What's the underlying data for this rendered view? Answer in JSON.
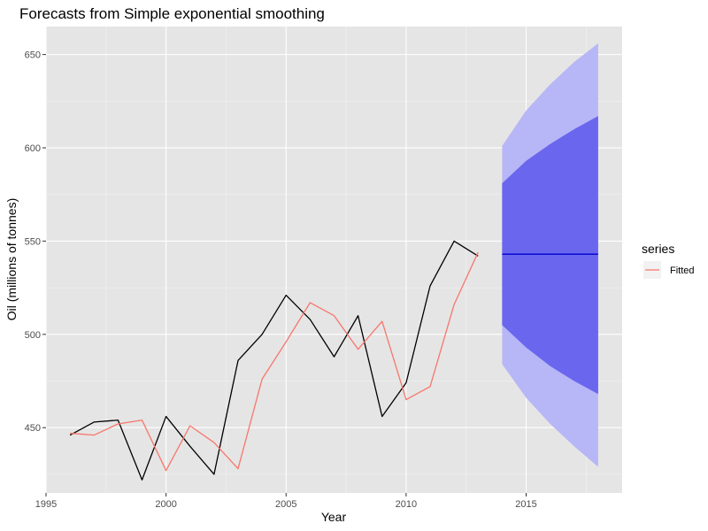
{
  "chart_data": {
    "type": "line",
    "title": "Forecasts from Simple exponential smoothing",
    "xlabel": "Year",
    "ylabel": "Oil (millions of tonnes)",
    "xlim": [
      1995,
      2019
    ],
    "ylim": [
      415,
      665
    ],
    "x_ticks": [
      1995,
      2000,
      2005,
      2010,
      2015
    ],
    "y_ticks": [
      450,
      500,
      550,
      600,
      650
    ],
    "grid": true,
    "legend": {
      "title": "series",
      "position": "right",
      "entries": [
        {
          "label": "Fitted",
          "color": "#f8766d"
        }
      ]
    },
    "series": [
      {
        "key": "observed",
        "color": "#000000",
        "x": [
          1996,
          1997,
          1998,
          1999,
          2000,
          2001,
          2002,
          2003,
          2004,
          2005,
          2006,
          2007,
          2008,
          2009,
          2010,
          2011,
          2012,
          2013
        ],
        "values": [
          446,
          453,
          454,
          422,
          456,
          440,
          425,
          486,
          500,
          521,
          508,
          488,
          510,
          456,
          474,
          526,
          550,
          542
        ]
      },
      {
        "name": "Fitted",
        "color": "#f8766d",
        "x": [
          1996,
          1997,
          1998,
          1999,
          2000,
          2001,
          2002,
          2003,
          2004,
          2005,
          2006,
          2007,
          2008,
          2009,
          2010,
          2011,
          2012,
          2013
        ],
        "values": [
          447,
          446,
          452,
          454,
          427,
          451,
          442,
          428,
          476,
          496,
          517,
          510,
          492,
          507,
          465,
          472,
          516,
          544
        ]
      }
    ],
    "forecast": {
      "color": "#0000cc",
      "x": [
        2014,
        2015,
        2016,
        2017,
        2018
      ],
      "mean": [
        543,
        543,
        543,
        543,
        543
      ],
      "lower80": [
        505,
        493,
        483,
        475,
        468
      ],
      "upper80": [
        581,
        593,
        602,
        610,
        617
      ],
      "lower95": [
        484,
        466,
        452,
        440,
        429
      ],
      "upper95": [
        601,
        620,
        634,
        646,
        656
      ],
      "color80": "#6a66ee",
      "color95": "#b7b6f6"
    },
    "panel_background": "#e5e5e5"
  }
}
